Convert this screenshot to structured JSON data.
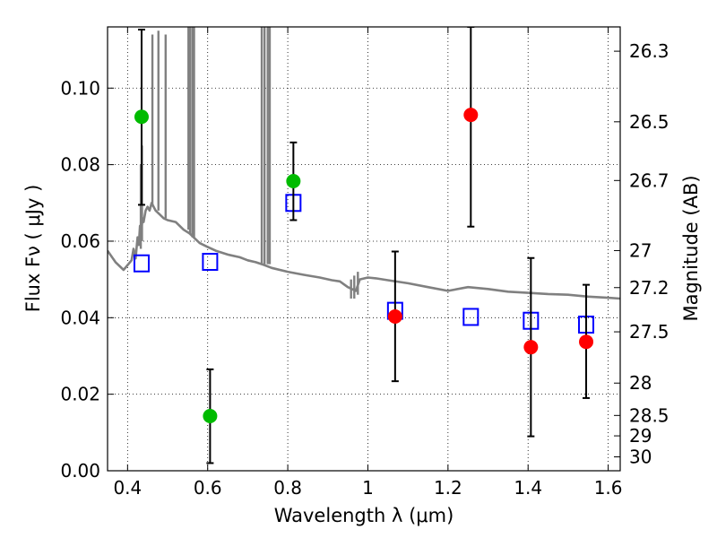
{
  "chart_data": {
    "type": "scatter",
    "xlabel": "Wavelength  λ (μm)",
    "ylabel": "Flux  Fν  ( μJy )",
    "ylabel_right": "Magnitude (AB)",
    "xlim": [
      0.35,
      1.63
    ],
    "ylim": [
      0.0,
      0.116
    ],
    "grid": true,
    "legend": "none",
    "x_ticks": [
      0.4,
      0.6,
      0.8,
      1.0,
      1.2,
      1.4,
      1.6
    ],
    "x_tick_labels": [
      "0.4",
      "0.6",
      "0.8",
      "1",
      "1.2",
      "1.4",
      "1.6"
    ],
    "y_ticks": [
      0.0,
      0.02,
      0.04,
      0.06,
      0.08,
      0.1
    ],
    "y_tick_labels": [
      "0.00",
      "0.02",
      "0.04",
      "0.06",
      "0.08",
      "0.10"
    ],
    "right_ticks": [
      {
        "mag": 26.3,
        "label": "26.3"
      },
      {
        "mag": 26.5,
        "label": "26.5"
      },
      {
        "mag": 26.7,
        "label": "26.7"
      },
      {
        "mag": 27.0,
        "label": "27"
      },
      {
        "mag": 27.2,
        "label": "27.2"
      },
      {
        "mag": 27.5,
        "label": "27.5"
      },
      {
        "mag": 28.0,
        "label": "28"
      },
      {
        "mag": 28.5,
        "label": "28.5"
      },
      {
        "mag": 29.0,
        "label": "29"
      },
      {
        "mag": 30.0,
        "label": "30"
      }
    ],
    "colors": {
      "green": "#00bb00",
      "red": "#ff0000",
      "model": "#808080",
      "model_fit": "#0000ff",
      "errorbar": "#000000",
      "grid": "#000000"
    },
    "series": [
      {
        "marker": "circle",
        "color": "green",
        "points": [
          {
            "x": 0.435,
            "y": 0.0925,
            "ylo": 0.0695,
            "yhi": 0.1153
          },
          {
            "x": 0.606,
            "y": 0.0143,
            "ylo": 0.002,
            "yhi": 0.0265
          },
          {
            "x": 0.814,
            "y": 0.0757,
            "ylo": 0.0655,
            "yhi": 0.0858
          }
        ]
      },
      {
        "marker": "circle",
        "color": "red",
        "points": [
          {
            "x": 1.068,
            "y": 0.0403,
            "ylo": 0.0234,
            "yhi": 0.0573
          },
          {
            "x": 1.257,
            "y": 0.093,
            "ylo": 0.0638,
            "yhi": 0.116
          },
          {
            "x": 1.407,
            "y": 0.0323,
            "ylo": 0.009,
            "yhi": 0.0556
          },
          {
            "x": 1.545,
            "y": 0.0337,
            "ylo": 0.019,
            "yhi": 0.0486
          }
        ]
      },
      {
        "marker": "open-square",
        "color": "model_fit",
        "points": [
          {
            "x": 0.435,
            "y": 0.0542
          },
          {
            "x": 0.606,
            "y": 0.0546
          },
          {
            "x": 0.814,
            "y": 0.07
          },
          {
            "x": 1.068,
            "y": 0.0418
          },
          {
            "x": 1.257,
            "y": 0.0402
          },
          {
            "x": 1.407,
            "y": 0.0392
          },
          {
            "x": 1.545,
            "y": 0.0382
          }
        ]
      },
      {
        "marker": "line",
        "color": "model",
        "points": [
          [
            0.35,
            0.0575
          ],
          [
            0.37,
            0.0545
          ],
          [
            0.39,
            0.0525
          ],
          [
            0.41,
            0.055
          ],
          [
            0.415,
            0.058
          ],
          [
            0.42,
            0.0555
          ],
          [
            0.425,
            0.061
          ],
          [
            0.428,
            0.059
          ],
          [
            0.431,
            0.064
          ],
          [
            0.434,
            0.062
          ],
          [
            0.437,
            0.066
          ],
          [
            0.44,
            0.065
          ],
          [
            0.445,
            0.068
          ],
          [
            0.45,
            0.069
          ],
          [
            0.455,
            0.068
          ],
          [
            0.46,
            0.07
          ],
          [
            0.47,
            0.068
          ],
          [
            0.48,
            0.067
          ],
          [
            0.49,
            0.066
          ],
          [
            0.5,
            0.0655
          ],
          [
            0.52,
            0.065
          ],
          [
            0.54,
            0.063
          ],
          [
            0.555,
            0.062
          ],
          [
            0.57,
            0.0605
          ],
          [
            0.58,
            0.0595
          ],
          [
            0.6,
            0.0585
          ],
          [
            0.62,
            0.0575
          ],
          [
            0.65,
            0.0565
          ],
          [
            0.68,
            0.0558
          ],
          [
            0.7,
            0.055
          ],
          [
            0.72,
            0.0545
          ],
          [
            0.74,
            0.0538
          ],
          [
            0.76,
            0.053
          ],
          [
            0.8,
            0.052
          ],
          [
            0.84,
            0.0512
          ],
          [
            0.88,
            0.0505
          ],
          [
            0.91,
            0.0498
          ],
          [
            0.93,
            0.0495
          ],
          [
            0.95,
            0.048
          ],
          [
            0.97,
            0.047
          ],
          [
            0.98,
            0.05
          ],
          [
            1.0,
            0.0505
          ],
          [
            1.02,
            0.0503
          ],
          [
            1.05,
            0.0498
          ],
          [
            1.1,
            0.049
          ],
          [
            1.15,
            0.048
          ],
          [
            1.2,
            0.047
          ],
          [
            1.25,
            0.048
          ],
          [
            1.3,
            0.0475
          ],
          [
            1.35,
            0.0468
          ],
          [
            1.4,
            0.0465
          ],
          [
            1.45,
            0.0462
          ],
          [
            1.5,
            0.046
          ],
          [
            1.55,
            0.0455
          ],
          [
            1.6,
            0.0452
          ],
          [
            1.63,
            0.045
          ]
        ],
        "spikes": [
          {
            "x": 0.433,
            "y0": 0.058,
            "y1": 0.08
          },
          {
            "x": 0.436,
            "y0": 0.06,
            "y1": 0.085
          },
          {
            "x": 0.462,
            "y0": 0.069,
            "y1": 0.114
          },
          {
            "x": 0.477,
            "y0": 0.068,
            "y1": 0.115
          },
          {
            "x": 0.495,
            "y0": 0.066,
            "y1": 0.114
          },
          {
            "x": 0.552,
            "y0": 0.063,
            "y1": 0.116
          },
          {
            "x": 0.556,
            "y0": 0.062,
            "y1": 0.116
          },
          {
            "x": 0.562,
            "y0": 0.061,
            "y1": 0.116
          },
          {
            "x": 0.566,
            "y0": 0.061,
            "y1": 0.116
          },
          {
            "x": 0.735,
            "y0": 0.054,
            "y1": 0.116
          },
          {
            "x": 0.742,
            "y0": 0.054,
            "y1": 0.116
          },
          {
            "x": 0.75,
            "y0": 0.054,
            "y1": 0.116
          },
          {
            "x": 0.755,
            "y0": 0.054,
            "y1": 0.116
          },
          {
            "x": 0.958,
            "y0": 0.045,
            "y1": 0.05
          },
          {
            "x": 0.966,
            "y0": 0.045,
            "y1": 0.051
          },
          {
            "x": 0.975,
            "y0": 0.046,
            "y1": 0.052
          }
        ]
      }
    ]
  }
}
